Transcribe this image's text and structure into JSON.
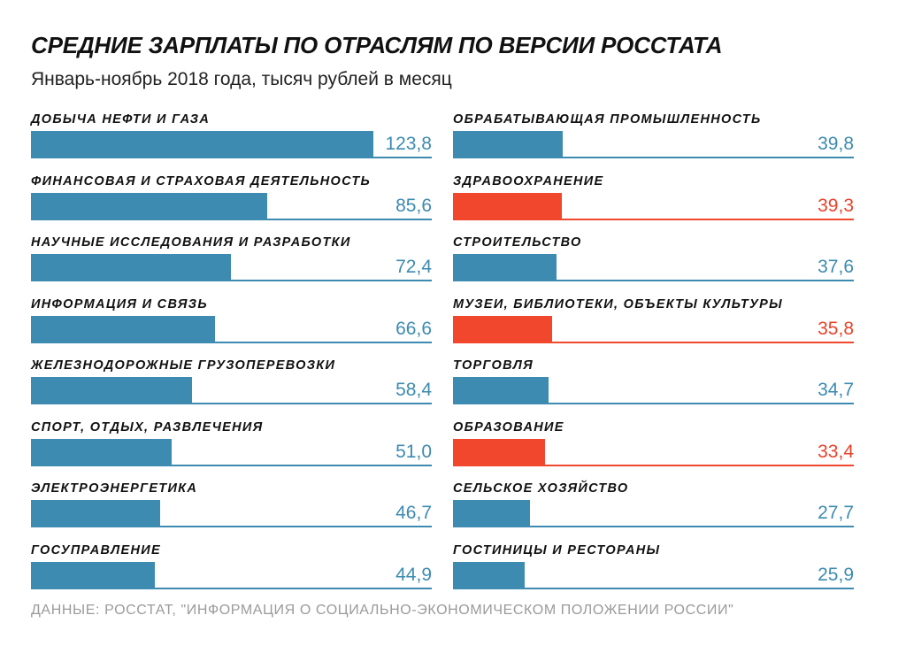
{
  "chart_data": {
    "type": "bar",
    "orientation": "horizontal",
    "title": "СРЕДНИЕ ЗАРПЛАТЫ ПО ОТРАСЛЯМ ПО ВЕРСИИ РОССТАТА",
    "subtitle": "Январь-ноябрь 2018 года, тысяч рублей в месяц",
    "source": "ДАННЫЕ: РОССТАТ, \"ИНФОРМАЦИЯ О СОЦИАЛЬНО-ЭКОНОМИЧЕСКОМ ПОЛОЖЕНИИ РОССИИ\"",
    "xlim": [
      0,
      145
    ],
    "colors": {
      "default": "#3d8bb0",
      "highlight": "#f0472d"
    },
    "left": [
      {
        "label": "ДОБЫЧА НЕФТИ И ГАЗА",
        "value": 123.8,
        "value_label": "123,8",
        "highlight": false
      },
      {
        "label": "ФИНАНСОВАЯ И СТРАХОВАЯ ДЕЯТЕЛЬНОСТЬ",
        "value": 85.6,
        "value_label": "85,6",
        "highlight": false
      },
      {
        "label": "НАУЧНЫЕ ИССЛЕДОВАНИЯ И РАЗРАБОТКИ",
        "value": 72.4,
        "value_label": "72,4",
        "highlight": false
      },
      {
        "label": "ИНФОРМАЦИЯ И СВЯЗЬ",
        "value": 66.6,
        "value_label": "66,6",
        "highlight": false
      },
      {
        "label": "ЖЕЛЕЗНОДОРОЖНЫЕ ГРУЗОПЕРЕВОЗКИ",
        "value": 58.4,
        "value_label": "58,4",
        "highlight": false
      },
      {
        "label": "СПОРТ, ОТДЫХ, РАЗВЛЕЧЕНИЯ",
        "value": 51.0,
        "value_label": "51,0",
        "highlight": false
      },
      {
        "label": "ЭЛЕКТРОЭНЕРГЕТИКА",
        "value": 46.7,
        "value_label": "46,7",
        "highlight": false
      },
      {
        "label": "ГОСУПРАВЛЕНИЕ",
        "value": 44.9,
        "value_label": "44,9",
        "highlight": false
      }
    ],
    "right": [
      {
        "label": "ОБРАБАТЫВАЮЩАЯ ПРОМЫШЛЕННОСТЬ",
        "value": 39.8,
        "value_label": "39,8",
        "highlight": false
      },
      {
        "label": "ЗДРАВООХРАНЕНИЕ",
        "value": 39.3,
        "value_label": "39,3",
        "highlight": true
      },
      {
        "label": "СТРОИТЕЛЬСТВО",
        "value": 37.6,
        "value_label": "37,6",
        "highlight": false
      },
      {
        "label": "МУЗЕИ, БИБЛИОТЕКИ, ОБЪЕКТЫ КУЛЬТУРЫ",
        "value": 35.8,
        "value_label": "35,8",
        "highlight": true
      },
      {
        "label": "ТОРГОВЛЯ",
        "value": 34.7,
        "value_label": "34,7",
        "highlight": false
      },
      {
        "label": "ОБРАЗОВАНИЕ",
        "value": 33.4,
        "value_label": "33,4",
        "highlight": true
      },
      {
        "label": "СЕЛЬСКОЕ ХОЗЯЙСТВО",
        "value": 27.7,
        "value_label": "27,7",
        "highlight": false
      },
      {
        "label": "ГОСТИНИЦЫ И РЕСТОРАНЫ",
        "value": 25.9,
        "value_label": "25,9",
        "highlight": false
      }
    ]
  }
}
